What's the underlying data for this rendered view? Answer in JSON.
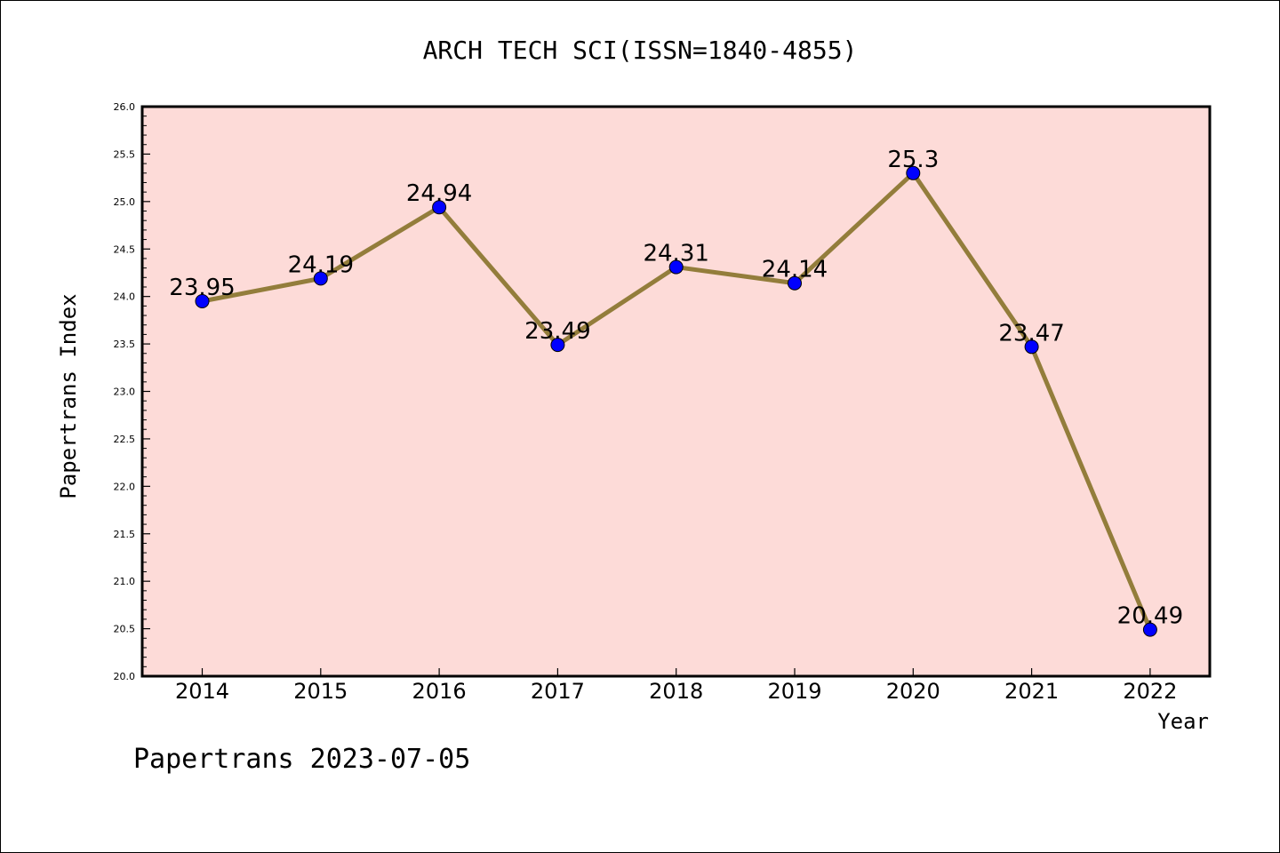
{
  "footer": "Papertrans 2023-07-05",
  "chart_data": {
    "type": "line",
    "title": "ARCH TECH SCI(ISSN=1840-4855)",
    "xlabel": "Year",
    "ylabel": "Papertrans Index",
    "categories": [
      "2014",
      "2015",
      "2016",
      "2017",
      "2018",
      "2019",
      "2020",
      "2021",
      "2022"
    ],
    "series": [
      {
        "values": [
          23.95,
          24.19,
          24.94,
          23.49,
          24.31,
          24.14,
          25.3,
          23.47,
          20.49
        ],
        "data_labels": [
          "23.95",
          "24.19",
          "24.94",
          "23.49",
          "24.31",
          "24.14",
          "25.3",
          "23.47",
          "20.49"
        ]
      }
    ],
    "ylim": [
      20.0,
      26.0
    ],
    "yticks": [
      "20.0",
      "20.5",
      "21.0",
      "21.5",
      "22.0",
      "22.5",
      "23.0",
      "23.5",
      "24.0",
      "24.5",
      "25.0",
      "25.5",
      "26.0"
    ],
    "grid": false,
    "legend": "none",
    "colors": {
      "plot_background": "#fddbd8",
      "line": "#937d3b",
      "marker": "#0000ff"
    }
  }
}
